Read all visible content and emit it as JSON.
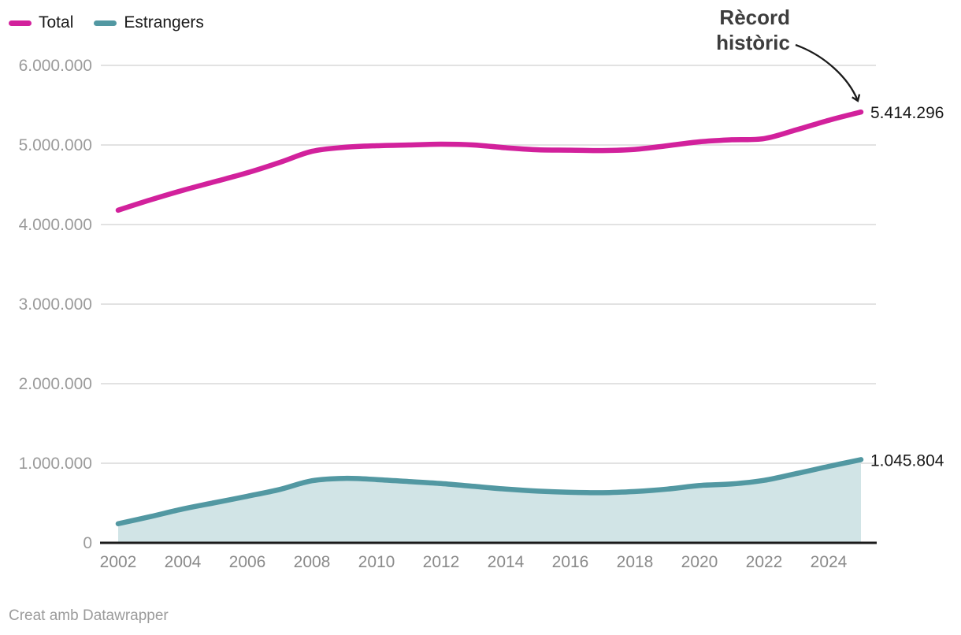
{
  "footer": {
    "text": "Creat amb Datawrapper"
  },
  "chart_data": {
    "type": "line",
    "title": "",
    "xlabel": "",
    "ylabel": "",
    "x": [
      2002,
      2003,
      2004,
      2005,
      2006,
      2007,
      2008,
      2009,
      2010,
      2011,
      2012,
      2013,
      2014,
      2015,
      2016,
      2017,
      2018,
      2019,
      2020,
      2021,
      2022,
      2023,
      2024,
      2025
    ],
    "series": [
      {
        "name": "Total",
        "color": "#d2219c",
        "values": [
          4180000,
          4310000,
          4430000,
          4540000,
          4650000,
          4780000,
          4920000,
          4970000,
          4990000,
          5000000,
          5010000,
          5000000,
          4965000,
          4940000,
          4935000,
          4930000,
          4945000,
          4990000,
          5040000,
          5065000,
          5080000,
          5190000,
          5310000,
          5414296
        ]
      },
      {
        "name": "Estrangers",
        "color": "#5298a2",
        "area_fill": "#d1e4e6",
        "values": [
          240000,
          330000,
          425000,
          505000,
          585000,
          670000,
          780000,
          810000,
          795000,
          770000,
          745000,
          710000,
          675000,
          650000,
          635000,
          630000,
          645000,
          675000,
          720000,
          740000,
          785000,
          870000,
          960000,
          1045804
        ]
      }
    ],
    "ylim": [
      0,
      6000000
    ],
    "yticks": [
      {
        "value": 0,
        "label": "0"
      },
      {
        "value": 1000000,
        "label": "1.000.000"
      },
      {
        "value": 2000000,
        "label": "2.000.000"
      },
      {
        "value": 3000000,
        "label": "3.000.000"
      },
      {
        "value": 4000000,
        "label": "4.000.000"
      },
      {
        "value": 5000000,
        "label": "5.000.000"
      },
      {
        "value": 6000000,
        "label": "6.000.000"
      }
    ],
    "xticks": [
      2002,
      2004,
      2006,
      2008,
      2010,
      2012,
      2014,
      2016,
      2018,
      2020,
      2022,
      2024
    ],
    "grid": "horizontal",
    "legend_position": "top-left",
    "annotation": {
      "line1": "Rècord",
      "line2": "històric",
      "target_series": "Total",
      "target_x": 2025
    },
    "end_labels": {
      "Total": "5.414.296",
      "Estrangers": "1.045.804"
    }
  }
}
